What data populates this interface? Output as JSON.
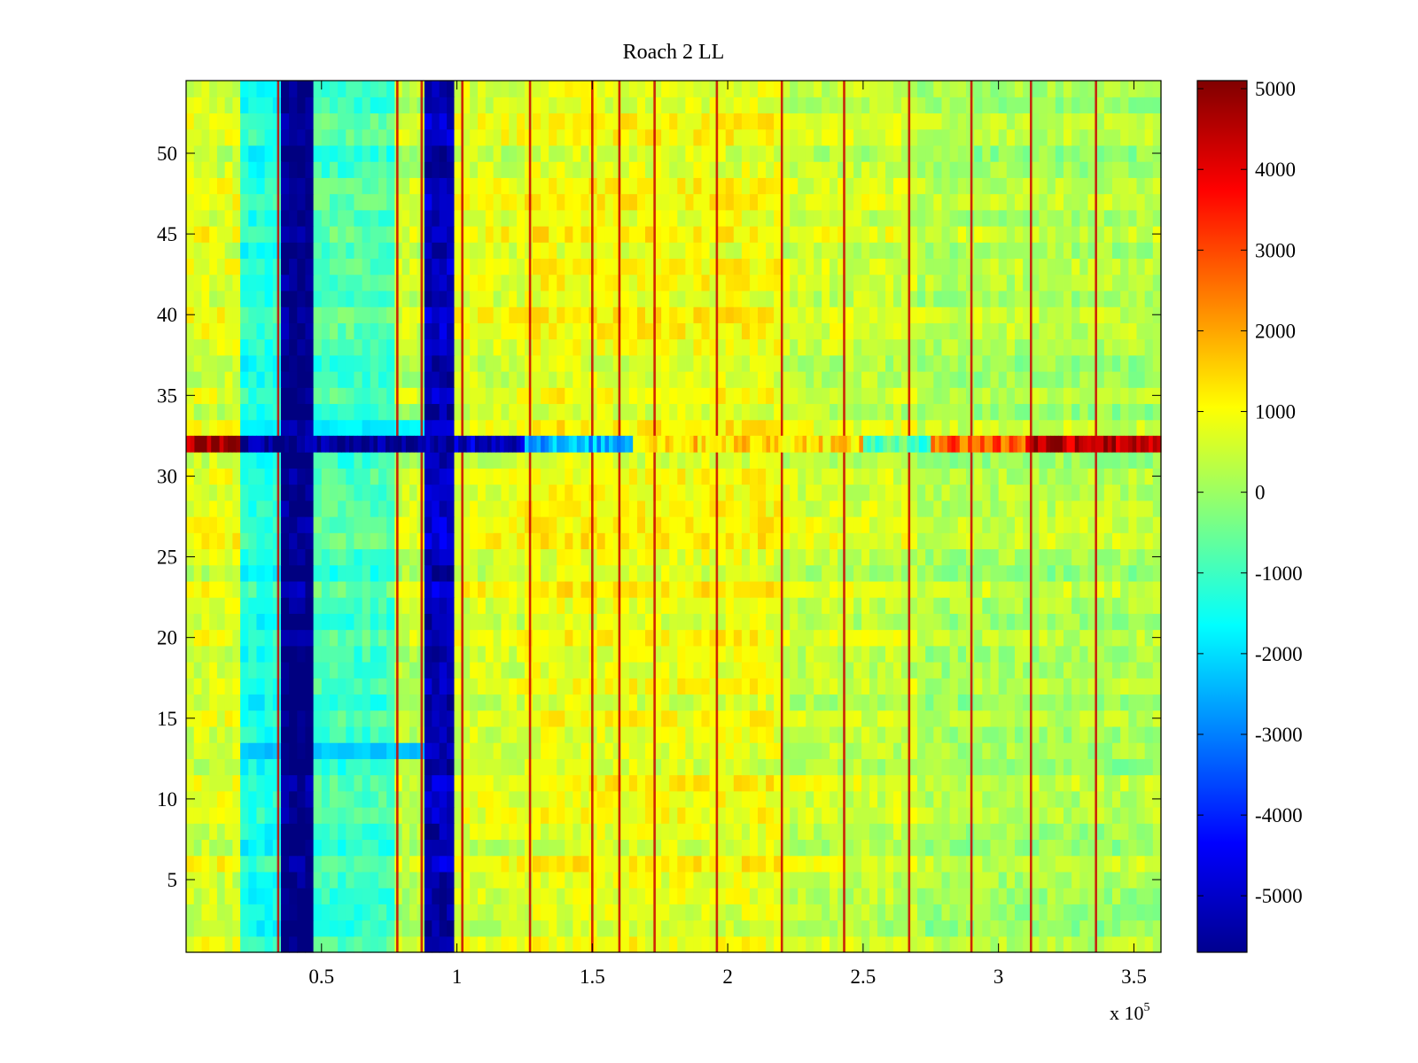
{
  "chart_data": {
    "type": "heatmap",
    "title": "Roach 2 LL",
    "xlabel": "",
    "ylabel": "",
    "x_exponent_label": "x 10",
    "x_exponent_power": "5",
    "xlim": [
      0,
      3.6
    ],
    "ylim": [
      0.5,
      54.5
    ],
    "x_ticks": [
      0.5,
      1,
      1.5,
      2,
      2.5,
      3,
      3.5
    ],
    "x_tick_labels": [
      "0.5",
      "1",
      "1.5",
      "2",
      "2.5",
      "3",
      "3.5"
    ],
    "y_ticks": [
      5,
      10,
      15,
      20,
      25,
      30,
      35,
      40,
      45,
      50
    ],
    "y_tick_labels": [
      "5",
      "10",
      "15",
      "20",
      "25",
      "30",
      "35",
      "40",
      "45",
      "50"
    ],
    "rows": 54,
    "colorbar": {
      "colormap": "jet",
      "clim": [
        -5700,
        5100
      ],
      "ticks": [
        5000,
        4000,
        3000,
        2000,
        1000,
        0,
        -1000,
        -2000,
        -3000,
        -4000,
        -5000
      ],
      "tick_labels": [
        "5000",
        "4000",
        "3000",
        "2000",
        "1000",
        "0",
        "-1000",
        "-2000",
        "-3000",
        "-4000",
        "-5000"
      ]
    },
    "column_profile": [
      {
        "from": 0.0,
        "to": 0.2,
        "value": 700
      },
      {
        "from": 0.2,
        "to": 0.35,
        "value": -1300
      },
      {
        "from": 0.35,
        "to": 0.47,
        "value": -5600
      },
      {
        "from": 0.47,
        "to": 0.77,
        "value": -900
      },
      {
        "from": 0.77,
        "to": 0.88,
        "value": 400
      },
      {
        "from": 0.88,
        "to": 0.99,
        "value": -5100
      },
      {
        "from": 0.99,
        "to": 1.25,
        "value": 700
      },
      {
        "from": 1.25,
        "to": 2.2,
        "value": 900
      },
      {
        "from": 2.2,
        "to": 2.7,
        "value": 500
      },
      {
        "from": 2.7,
        "to": 3.6,
        "value": 200
      }
    ],
    "vertical_lines_x": [
      0.34,
      0.78,
      0.87,
      1.02,
      1.27,
      1.5,
      1.6,
      1.73,
      1.96,
      2.2,
      2.43,
      2.67,
      2.9,
      3.12,
      3.36
    ],
    "vertical_line_value": 4300,
    "horizontal_band": {
      "row": 32,
      "segments": [
        {
          "from": 0.0,
          "to": 0.2,
          "value": 5000
        },
        {
          "from": 0.2,
          "to": 0.99,
          "value": -5600
        },
        {
          "from": 0.99,
          "to": 1.25,
          "value": -4800
        },
        {
          "from": 1.25,
          "to": 1.65,
          "value": -2500
        },
        {
          "from": 1.65,
          "to": 2.5,
          "value": 1500
        },
        {
          "from": 2.5,
          "to": 2.75,
          "value": -800
        },
        {
          "from": 2.75,
          "to": 3.1,
          "value": 2800
        },
        {
          "from": 3.1,
          "to": 3.6,
          "value": 4700
        }
      ]
    },
    "row_33_tint": -1800,
    "row_13_tint": -2200
  }
}
